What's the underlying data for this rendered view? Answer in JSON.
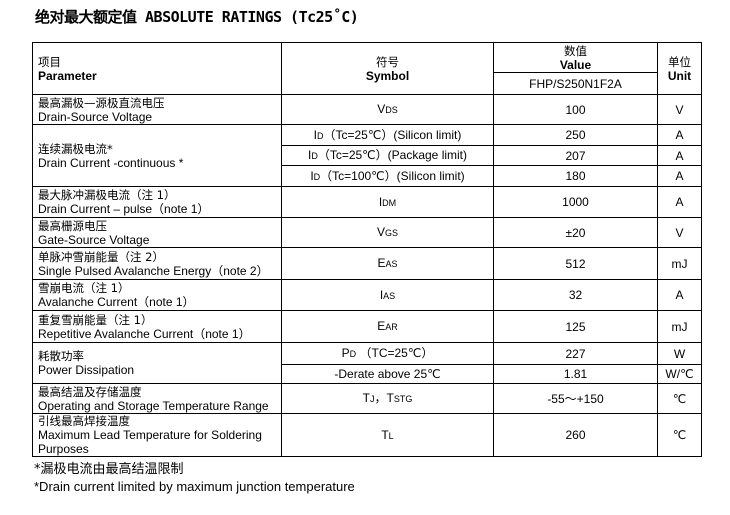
{
  "title": "绝对最大额定值 ABSOLUTE RATINGS (Tc25˚C)",
  "header": {
    "param_cn": "项目",
    "param_en": "Parameter",
    "symbol_cn": "符号",
    "symbol_en": "Symbol",
    "value_cn": "数值",
    "value_en": "Value",
    "part": "FHP/S250N1F2A",
    "unit_cn": "单位",
    "unit_en": "Unit"
  },
  "rows": [
    {
      "cn": "最高漏极—源极直流电压",
      "en": "Drain-Source Voltage",
      "subs": [
        {
          "sym": "V",
          "sub": "DS",
          "cond": "",
          "value": "100",
          "unit": "V"
        }
      ]
    },
    {
      "cn": "连续漏极电流*",
      "en": "Drain Current -continuous *",
      "subs": [
        {
          "sym": "I",
          "sub": "D",
          "cond": "（Tc=25℃）(Silicon limit)",
          "value": "250",
          "unit": "A"
        },
        {
          "sym": "I",
          "sub": "D",
          "cond": "（Tc=25℃）(Package limit)",
          "value": "207",
          "unit": "A"
        },
        {
          "sym": "I",
          "sub": "D",
          "cond": "（Tc=100℃）(Silicon limit)",
          "value": "180",
          "unit": "A"
        }
      ]
    },
    {
      "cn": "最大脉冲漏极电流（注 1）",
      "en": "Drain Current – pulse（note 1）",
      "subs": [
        {
          "sym": "I",
          "sub": "DM",
          "cond": "",
          "value": "1000",
          "unit": "A"
        }
      ]
    },
    {
      "cn": "最高栅源电压",
      "en": "Gate-Source Voltage",
      "subs": [
        {
          "sym": "V",
          "sub": "GS",
          "cond": "",
          "value": "±20",
          "unit": "V"
        }
      ]
    },
    {
      "cn": "单脉冲雪崩能量（注 2）",
      "en": "Single Pulsed Avalanche Energy（note 2）",
      "subs": [
        {
          "sym": "E",
          "sub": "AS",
          "cond": "",
          "value": "512",
          "unit": "mJ"
        }
      ]
    },
    {
      "cn": "雪崩电流（注 1）",
      "en": "Avalanche Current（note 1）",
      "subs": [
        {
          "sym": "I",
          "sub": "AS",
          "cond": "",
          "value": "32",
          "unit": "A"
        }
      ]
    },
    {
      "cn": "重复雪崩能量（注 1）",
      "en": "Repetitive Avalanche Current（note 1）",
      "subs": [
        {
          "sym": "E",
          "sub": "AR",
          "cond": "",
          "value": "125",
          "unit": "mJ"
        }
      ]
    },
    {
      "cn": "耗散功率",
      "en": "Power Dissipation",
      "subs": [
        {
          "sym": "P",
          "sub": "D",
          "cond": " （TC=25℃）",
          "value": "227",
          "unit": "W"
        },
        {
          "sym": "",
          "sub": "",
          "cond": "-Derate above 25℃",
          "value": "1.81",
          "unit": "W/℃"
        }
      ]
    },
    {
      "cn": "最高结温及存储温度",
      "en": "Operating and Storage Temperature Range",
      "subs": [
        {
          "sym": "T",
          "sub": "J",
          "cond": "，T",
          "sub2": "STG",
          "value": "-55～+150",
          "unit": "℃"
        }
      ]
    },
    {
      "cn": "引线最高焊接温度",
      "en": "Maximum Lead Temperature for Soldering Purposes",
      "subs": [
        {
          "sym": "T",
          "sub": "L",
          "cond": "",
          "value": "260",
          "unit": "℃"
        }
      ]
    }
  ],
  "footnotes": [
    "*漏极电流由最高结温限制",
    "*Drain current limited by maximum junction temperature"
  ]
}
